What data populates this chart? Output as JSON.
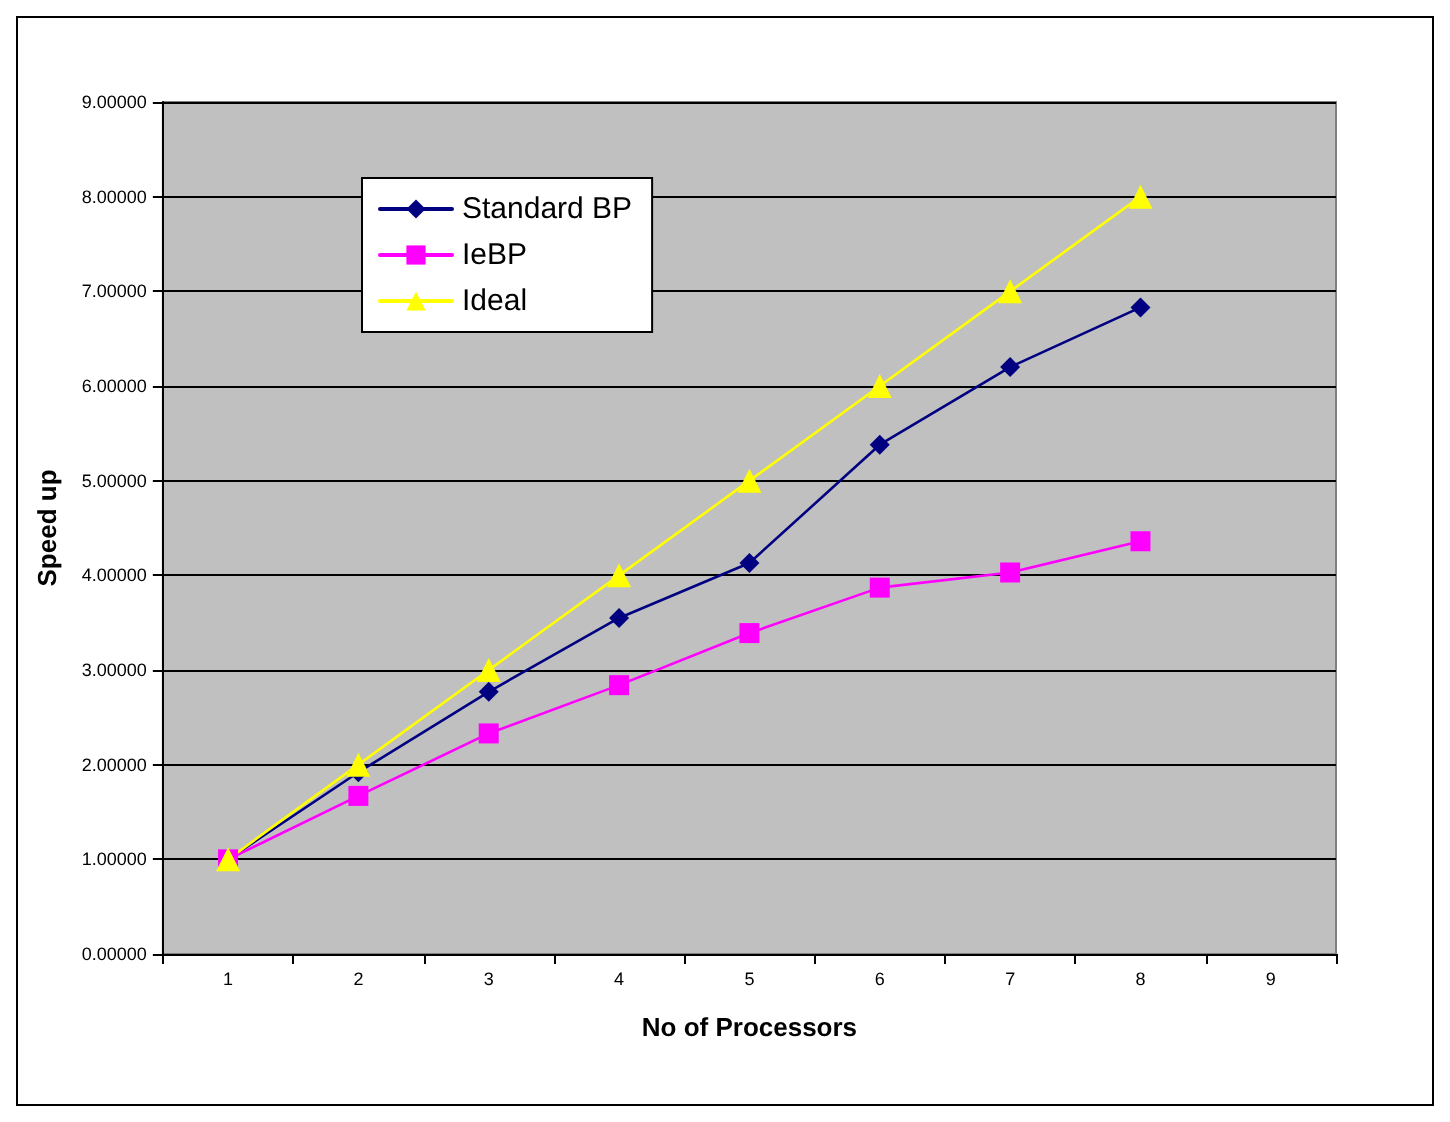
{
  "chart_data": {
    "type": "line",
    "xlabel": "No of Processors",
    "ylabel": "Speed up",
    "categories": [
      "1",
      "2",
      "3",
      "4",
      "5",
      "6",
      "7",
      "8",
      "9"
    ],
    "series": [
      {
        "name": "Standard BP",
        "color": "#000080",
        "marker": "diamond",
        "values": [
          1,
          1.92,
          2.77,
          3.55,
          4.13,
          5.38,
          6.2,
          6.83,
          null
        ]
      },
      {
        "name": "IeBP",
        "color": "#ff00ff",
        "marker": "square",
        "values": [
          1,
          1.67,
          2.33,
          2.84,
          3.39,
          3.87,
          4.03,
          4.36,
          null
        ]
      },
      {
        "name": "Ideal",
        "color": "#ffff00",
        "marker": "triangle",
        "values": [
          1,
          2,
          3,
          4,
          5,
          6,
          7,
          8,
          null
        ]
      }
    ],
    "ylim": [
      0,
      9
    ],
    "yticks": [
      {
        "value": 0,
        "label": "0.00000"
      },
      {
        "value": 1,
        "label": "1.00000"
      },
      {
        "value": 2,
        "label": "2.00000"
      },
      {
        "value": 3,
        "label": "3.00000"
      },
      {
        "value": 4,
        "label": "4.00000"
      },
      {
        "value": 5,
        "label": "5.00000"
      },
      {
        "value": 6,
        "label": "6.00000"
      },
      {
        "value": 7,
        "label": "7.00000"
      },
      {
        "value": 8,
        "label": "8.00000"
      },
      {
        "value": 9,
        "label": "9.00000"
      }
    ],
    "grid": "y",
    "legend": "top left"
  }
}
